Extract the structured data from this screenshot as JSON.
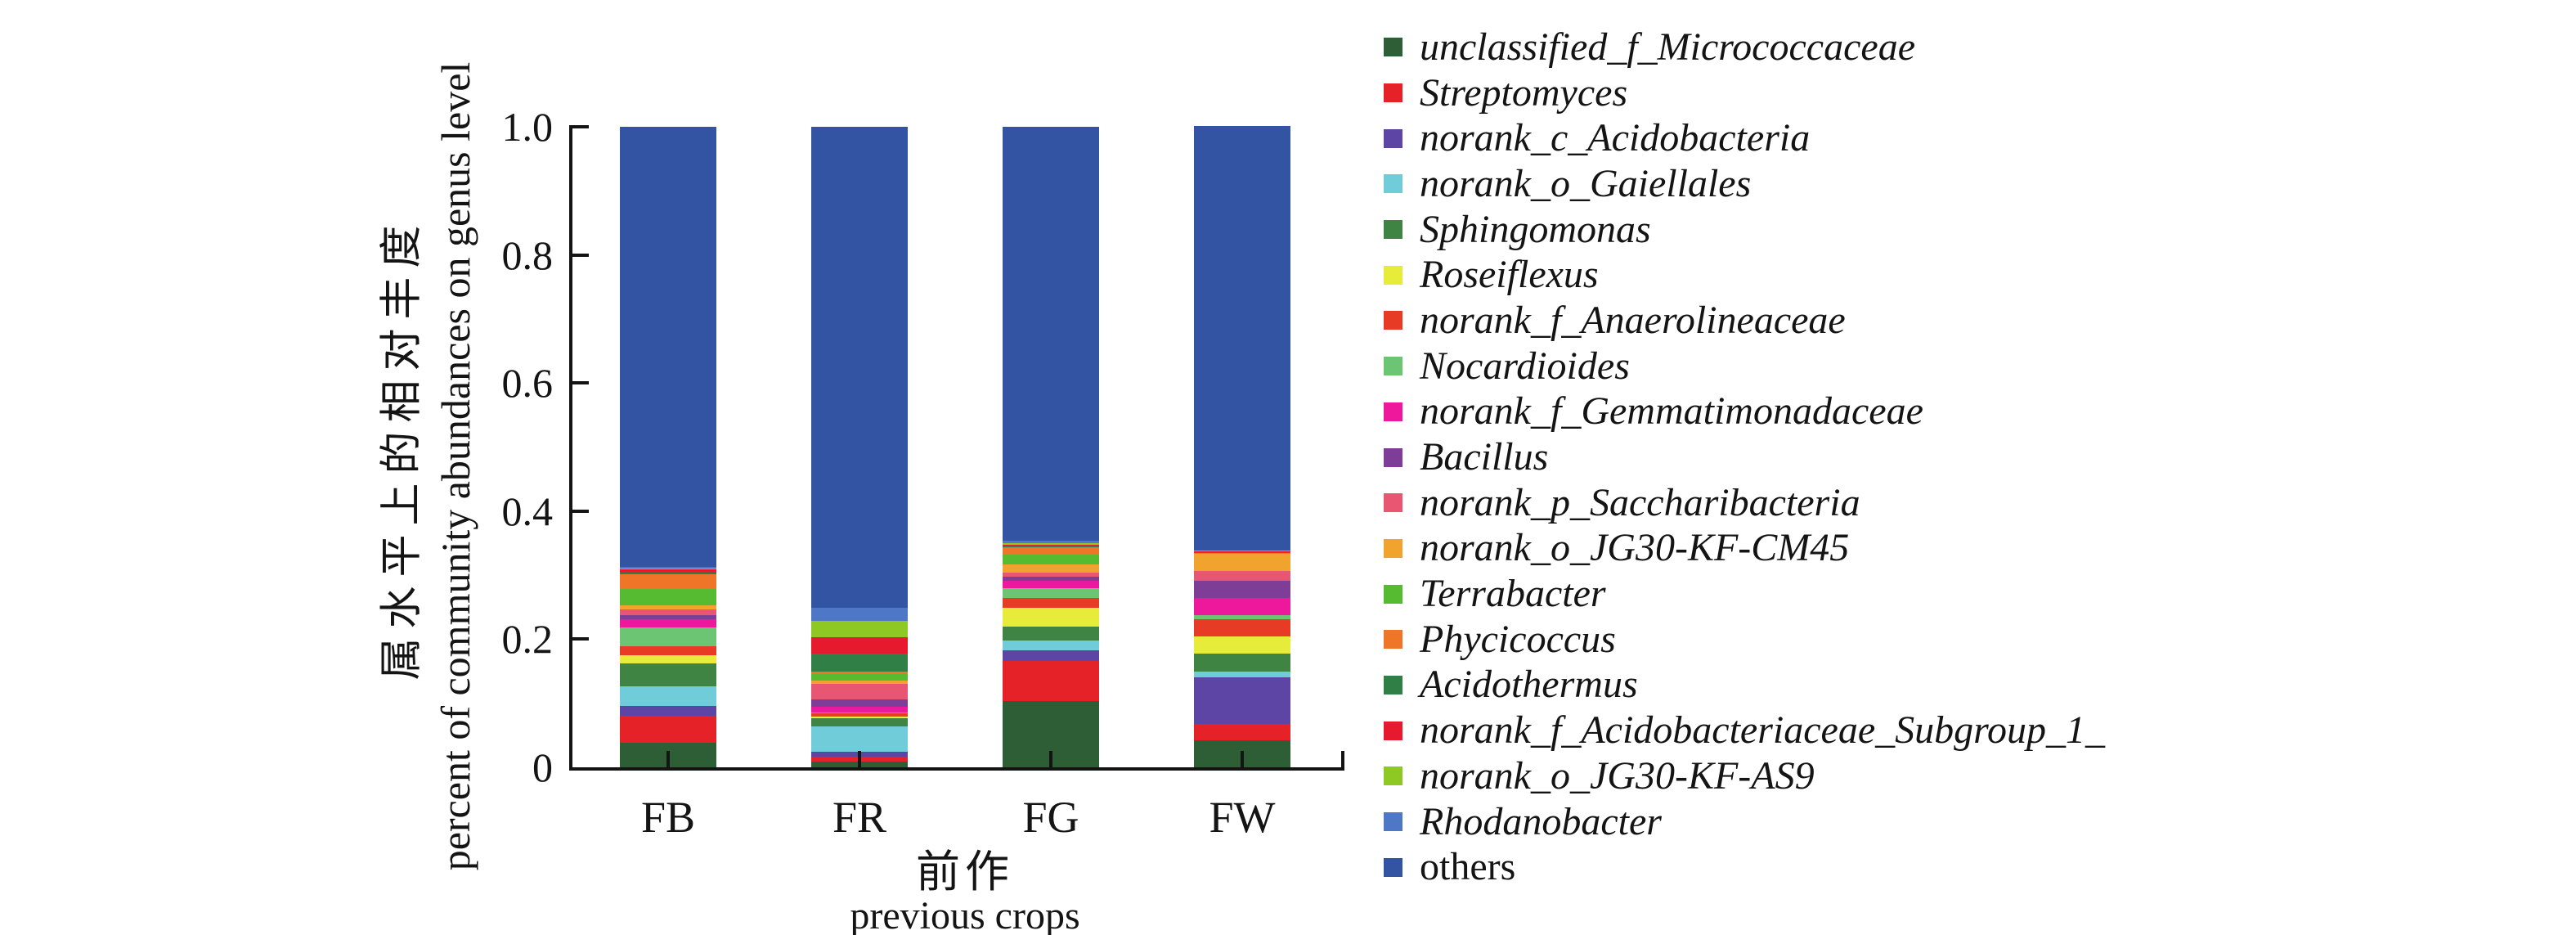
{
  "figure": {
    "y_axis": {
      "label_zh": "属水平上的相对丰度",
      "label_en": "percent of community abundances on genus level",
      "tick_labels": [
        "1.0",
        "0.8",
        "0.6",
        "0.4",
        "0.2",
        "0"
      ],
      "tick_values": [
        1.0,
        0.8,
        0.6,
        0.4,
        0.2,
        0
      ]
    },
    "x_axis": {
      "label_zh": "前作",
      "label_en": "previous crops"
    },
    "axis_color": "#141414"
  },
  "chart_data": {
    "type": "bar",
    "stacked": true,
    "grid": false,
    "legend_position": "right",
    "title": "",
    "xlabel": "前作 previous crops",
    "ylabel": "属水平上的相对丰度 percent of community abundances on genus level",
    "ylim": [
      0,
      1
    ],
    "categories": [
      "FB",
      "FR",
      "FG",
      "FW"
    ],
    "series": [
      {
        "name": "unclassified_f_Micrococcaceae",
        "color": "#2e5e36",
        "italic": true,
        "values": [
          0.038,
          0.009,
          0.104,
          0.042
        ]
      },
      {
        "name": "Streptomyces",
        "color": "#e62229",
        "italic": true,
        "values": [
          0.043,
          0.008,
          0.062,
          0.026
        ]
      },
      {
        "name": "norank_c_Acidobacteria",
        "color": "#5d45a6",
        "italic": true,
        "values": [
          0.015,
          0.007,
          0.017,
          0.072
        ]
      },
      {
        "name": "norank_o_Gaiellales",
        "color": "#6fccd8",
        "italic": true,
        "values": [
          0.031,
          0.04,
          0.015,
          0.009
        ]
      },
      {
        "name": "Sphingomonas",
        "color": "#3f8442",
        "italic": true,
        "values": [
          0.035,
          0.013,
          0.022,
          0.028
        ]
      },
      {
        "name": "Roseiflexus",
        "color": "#e7eb3a",
        "italic": true,
        "values": [
          0.013,
          0.002,
          0.029,
          0.028
        ]
      },
      {
        "name": "norank_f_Anaerolineaceae",
        "color": "#e83b25",
        "italic": true,
        "values": [
          0.014,
          0.005,
          0.016,
          0.026
        ]
      },
      {
        "name": "Nocardioides",
        "color": "#6cc573",
        "italic": true,
        "values": [
          0.03,
          0.002,
          0.015,
          0.007
        ]
      },
      {
        "name": "norank_f_Gemmatimonadaceae",
        "color": "#ed189c",
        "italic": true,
        "values": [
          0.012,
          0.008,
          0.011,
          0.026
        ]
      },
      {
        "name": "Bacillus",
        "color": "#7e3e97",
        "italic": true,
        "values": [
          0.007,
          0.012,
          0.007,
          0.027
        ]
      },
      {
        "name": "norank_p_Saccharibacteria",
        "color": "#e95672",
        "italic": true,
        "values": [
          0.009,
          0.024,
          0.006,
          0.016
        ]
      },
      {
        "name": "norank_o_JG30-KF-CM45",
        "color": "#f0a42e",
        "italic": true,
        "values": [
          0.006,
          0.006,
          0.013,
          0.026
        ]
      },
      {
        "name": "Terrabacter",
        "color": "#56bb31",
        "italic": true,
        "values": [
          0.025,
          0.01,
          0.015,
          0.001
        ]
      },
      {
        "name": "Phycicoccus",
        "color": "#ef7529",
        "italic": true,
        "values": [
          0.023,
          0.004,
          0.012,
          0.001
        ]
      },
      {
        "name": "Acidothermus",
        "color": "#2f7f46",
        "italic": true,
        "values": [
          0.003,
          0.028,
          0.002,
          0.001
        ]
      },
      {
        "name": "norank_f_Acidobacteriaceae_Subgroup_1_",
        "color": "#e7192f",
        "italic": true,
        "values": [
          0.005,
          0.025,
          0.002,
          0.001
        ]
      },
      {
        "name": "norank_o_JG30-KF-AS9",
        "color": "#8ec822",
        "italic": true,
        "values": [
          0.002,
          0.026,
          0.002,
          0.001
        ]
      },
      {
        "name": "Rhodanobacter",
        "color": "#4e77c5",
        "italic": true,
        "values": [
          0.002,
          0.02,
          0.004,
          0.001
        ]
      },
      {
        "name": "others",
        "color": "#3353a3",
        "italic": false,
        "values": [
          0.687,
          0.751,
          0.646,
          0.662
        ]
      }
    ]
  }
}
